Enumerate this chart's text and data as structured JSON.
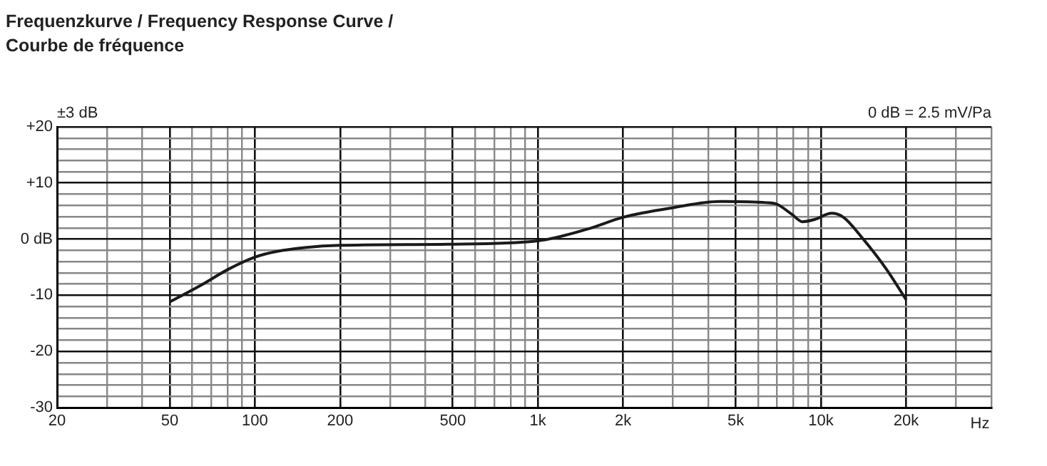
{
  "chart_data": {
    "type": "line",
    "title": "Frequenzkurve / Frequency Response Curve / Courbe de fréquence",
    "xlabel": "Hz",
    "log": "x",
    "grid": true,
    "annotations": [
      "±3 dB",
      "0 dB = 2.5 mV/Pa"
    ],
    "xlim": [
      20,
      40000
    ],
    "ylim": [
      -30,
      20
    ],
    "xticks": [
      {
        "value": 20,
        "label": "20"
      },
      {
        "value": 30,
        "label": null
      },
      {
        "value": 40,
        "label": null
      },
      {
        "value": 50,
        "label": "50"
      },
      {
        "value": 60,
        "label": null
      },
      {
        "value": 70,
        "label": null
      },
      {
        "value": 80,
        "label": null
      },
      {
        "value": 90,
        "label": null
      },
      {
        "value": 100,
        "label": "100"
      },
      {
        "value": 200,
        "label": "200"
      },
      {
        "value": 300,
        "label": null
      },
      {
        "value": 400,
        "label": null
      },
      {
        "value": 500,
        "label": "500"
      },
      {
        "value": 600,
        "label": null
      },
      {
        "value": 700,
        "label": null
      },
      {
        "value": 800,
        "label": null
      },
      {
        "value": 900,
        "label": null
      },
      {
        "value": 1000,
        "label": "1k"
      },
      {
        "value": 2000,
        "label": "2k"
      },
      {
        "value": 3000,
        "label": null
      },
      {
        "value": 4000,
        "label": null
      },
      {
        "value": 5000,
        "label": "5k"
      },
      {
        "value": 6000,
        "label": null
      },
      {
        "value": 7000,
        "label": null
      },
      {
        "value": 8000,
        "label": null
      },
      {
        "value": 9000,
        "label": null
      },
      {
        "value": 10000,
        "label": "10k"
      },
      {
        "value": 20000,
        "label": "20k"
      },
      {
        "value": 30000,
        "label": null
      },
      {
        "value": 40000,
        "label": null
      }
    ],
    "yticks": [
      {
        "value": -30,
        "label": "-30"
      },
      {
        "value": -28,
        "label": null
      },
      {
        "value": -26,
        "label": null
      },
      {
        "value": -24,
        "label": null
      },
      {
        "value": -22,
        "label": null
      },
      {
        "value": -20,
        "label": "-20"
      },
      {
        "value": -18,
        "label": null
      },
      {
        "value": -16,
        "label": null
      },
      {
        "value": -14,
        "label": null
      },
      {
        "value": -12,
        "label": null
      },
      {
        "value": -10,
        "label": "-10"
      },
      {
        "value": -8,
        "label": null
      },
      {
        "value": -6,
        "label": null
      },
      {
        "value": -4,
        "label": null
      },
      {
        "value": -2,
        "label": null
      },
      {
        "value": 0,
        "label": "0 dB"
      },
      {
        "value": 2,
        "label": null
      },
      {
        "value": 4,
        "label": null
      },
      {
        "value": 6,
        "label": null
      },
      {
        "value": 8,
        "label": null
      },
      {
        "value": 10,
        "label": "+10"
      },
      {
        "value": 12,
        "label": null
      },
      {
        "value": 14,
        "label": null
      },
      {
        "value": 16,
        "label": null
      },
      {
        "value": 18,
        "label": null
      },
      {
        "value": 20,
        "label": "+20"
      }
    ],
    "x": [
      50,
      64,
      81,
      100,
      119,
      150,
      200,
      480,
      1000,
      1500,
      2000,
      3000,
      4400,
      6400,
      7000,
      7900,
      8600,
      9500,
      10900,
      12000,
      14000,
      17000,
      20000
    ],
    "series": [
      {
        "color": "#1a1a1a",
        "values": [
          -11.2,
          -8.3,
          -5.3,
          -3.2,
          -2.2,
          -1.5,
          -1.1,
          -0.9,
          -0.3,
          1.8,
          3.9,
          5.6,
          6.7,
          6.5,
          6.2,
          4.4,
          3.1,
          3.5,
          4.6,
          3.9,
          0.2,
          -5.3,
          -10.8
        ]
      }
    ]
  }
}
